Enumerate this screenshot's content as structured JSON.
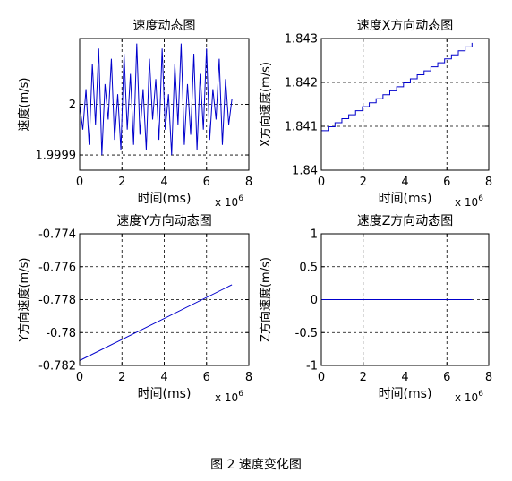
{
  "caption": "图 2 速度变化图",
  "chart_data": [
    {
      "type": "line",
      "title": "速度动态图",
      "xlabel": "时间(ms)",
      "ylabel": "速度(m/s)",
      "x_exponent_label": "x 10^6",
      "xlim": [
        0,
        8
      ],
      "ylim": [
        1.99987,
        2.00013
      ],
      "x_ticks": [
        "0",
        "2",
        "4",
        "6",
        "8"
      ],
      "y_ticks": [
        {
          "value": 1.9999,
          "label": "1.9999"
        },
        {
          "value": 2.0,
          "label": "2"
        }
      ],
      "grid": true,
      "line_color": "#0000cc",
      "x": [
        0.0,
        0.15,
        0.3,
        0.45,
        0.6,
        0.75,
        0.9,
        1.05,
        1.2,
        1.35,
        1.5,
        1.65,
        1.8,
        1.95,
        2.1,
        2.25,
        2.4,
        2.55,
        2.7,
        2.85,
        3.0,
        3.15,
        3.3,
        3.45,
        3.6,
        3.75,
        3.9,
        4.05,
        4.2,
        4.35,
        4.5,
        4.65,
        4.8,
        4.95,
        5.1,
        5.25,
        5.4,
        5.55,
        5.7,
        5.85,
        6.0,
        6.15,
        6.3,
        6.45,
        6.6,
        6.75,
        6.9,
        7.05,
        7.2
      ],
      "values": [
        2.0,
        1.99995,
        2.00003,
        1.99992,
        2.00008,
        1.99996,
        2.00011,
        1.9999,
        2.00004,
        1.99997,
        2.00009,
        1.99993,
        2.00002,
        1.99991,
        2.0001,
        1.99995,
        2.00006,
        1.99992,
        2.00012,
        1.99994,
        2.00003,
        1.99991,
        2.00009,
        1.99997,
        2.00005,
        1.99993,
        2.00011,
        1.99995,
        2.00002,
        1.9999,
        2.00008,
        1.99996,
        2.00012,
        1.99992,
        2.00004,
        1.99994,
        2.0001,
        1.99991,
        2.00006,
        1.99995,
        2.00011,
        1.99993,
        2.00003,
        1.99997,
        2.00009,
        1.99992,
        2.00005,
        1.99996,
        2.00001
      ]
    },
    {
      "type": "line",
      "title": "速度X方向动态图",
      "xlabel": "时间(ms)",
      "ylabel": "X方向速度(m/s)",
      "x_exponent_label": "x 10^6",
      "xlim": [
        0,
        8
      ],
      "ylim": [
        1.84,
        1.843
      ],
      "x_ticks": [
        "0",
        "2",
        "4",
        "6",
        "8"
      ],
      "y_ticks": [
        {
          "value": 1.84,
          "label": "1.84"
        },
        {
          "value": 1.841,
          "label": "1.841"
        },
        {
          "value": 1.842,
          "label": "1.842"
        },
        {
          "value": 1.843,
          "label": "1.843"
        }
      ],
      "grid": true,
      "line_color": "#0000cc",
      "x": [
        0,
        7.2
      ],
      "values": [
        1.8409,
        1.8429
      ],
      "staircase_steps": 22
    },
    {
      "type": "line",
      "title": "速度Y方向动态图",
      "xlabel": "时间(ms)",
      "ylabel": "Y方向速度(m/s)",
      "x_exponent_label": "x 10^6",
      "xlim": [
        0,
        8
      ],
      "ylim": [
        -0.782,
        -0.774
      ],
      "x_ticks": [
        "0",
        "2",
        "4",
        "6",
        "8"
      ],
      "y_ticks": [
        {
          "value": -0.782,
          "label": "-0.782"
        },
        {
          "value": -0.78,
          "label": "-0.78"
        },
        {
          "value": -0.778,
          "label": "-0.778"
        },
        {
          "value": -0.776,
          "label": "-0.776"
        },
        {
          "value": -0.774,
          "label": "-0.774"
        }
      ],
      "grid": true,
      "line_color": "#0000cc",
      "x": [
        0,
        7.2
      ],
      "values": [
        -0.7817,
        -0.7771
      ]
    },
    {
      "type": "line",
      "title": "速度Z方向动态图",
      "xlabel": "时间(ms)",
      "ylabel": "Z方向速度(m/s)",
      "x_exponent_label": "x 10^6",
      "xlim": [
        0,
        8
      ],
      "ylim": [
        -1,
        1
      ],
      "x_ticks": [
        "0",
        "2",
        "4",
        "6",
        "8"
      ],
      "y_ticks": [
        {
          "value": -1,
          "label": "-1"
        },
        {
          "value": -0.5,
          "label": "-0.5"
        },
        {
          "value": 0,
          "label": "0"
        },
        {
          "value": 0.5,
          "label": "0.5"
        },
        {
          "value": 1,
          "label": "1"
        }
      ],
      "grid": true,
      "line_color": "#0000cc",
      "x": [
        0,
        7.2
      ],
      "values": [
        0,
        0
      ]
    }
  ]
}
